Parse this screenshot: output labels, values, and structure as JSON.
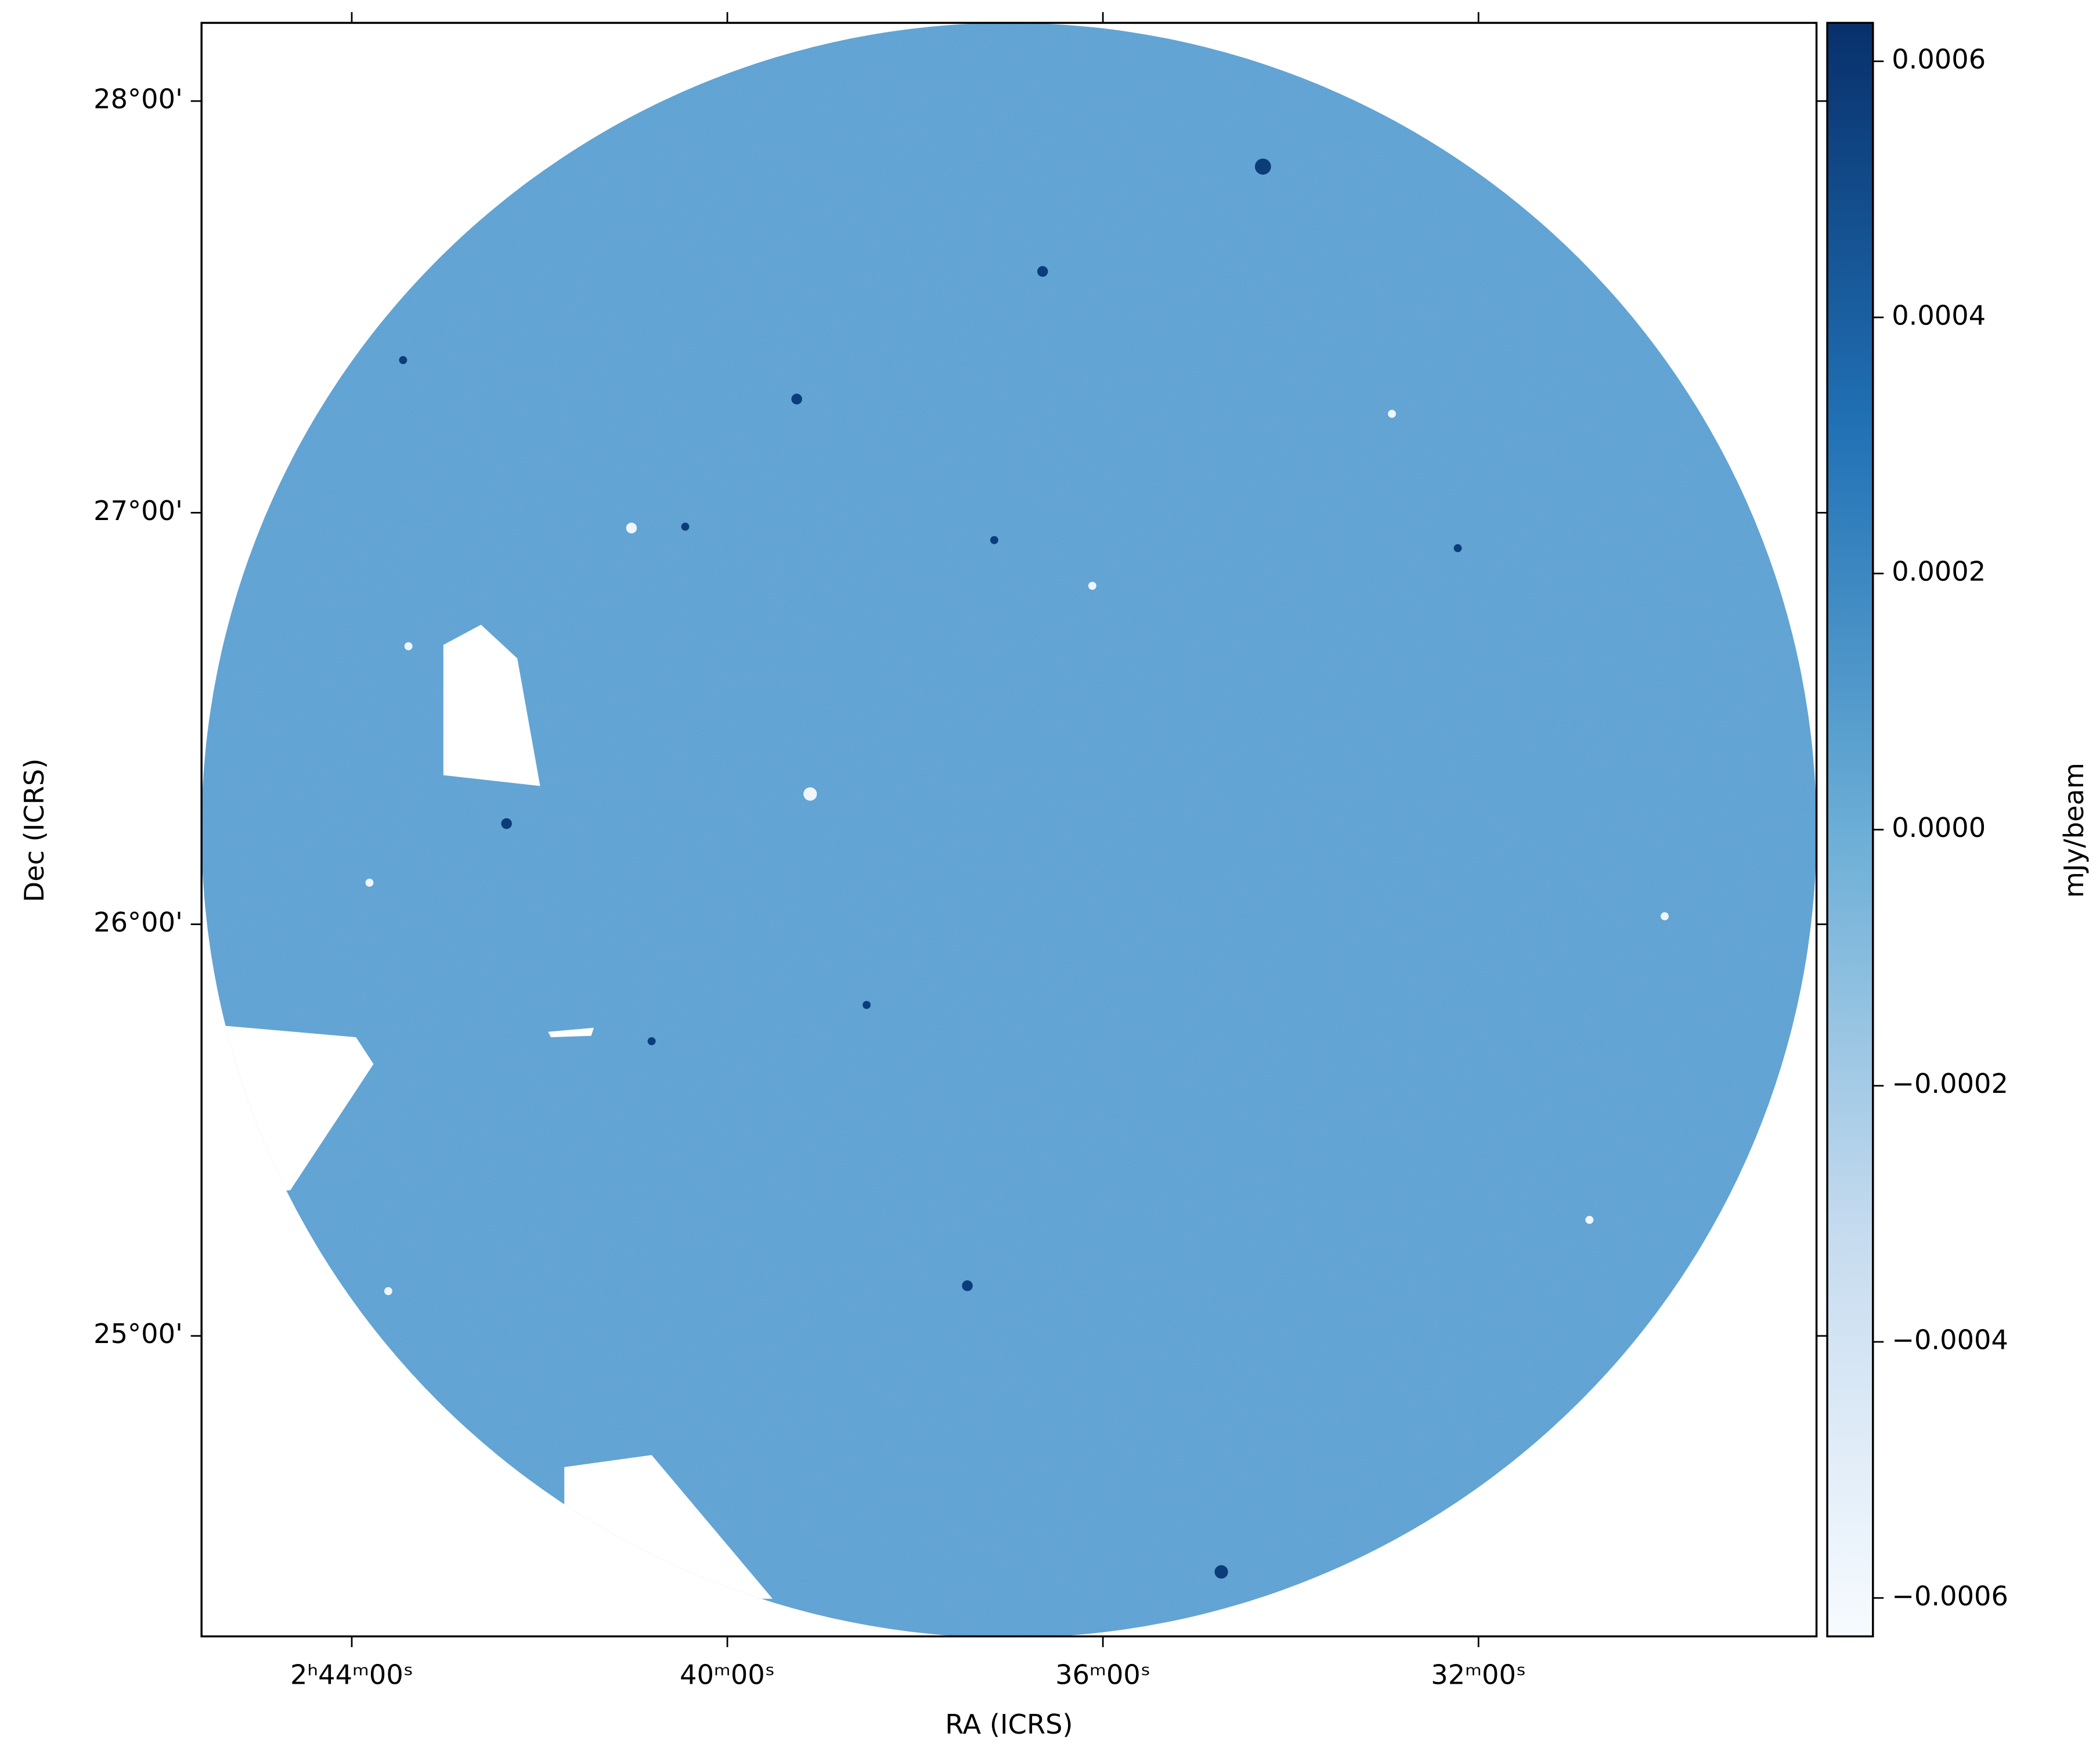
{
  "chart_data": {
    "type": "image",
    "xlabel": "RA (ICRS)",
    "ylabel": "Dec (ICRS)",
    "colorbar_label": "mJy/beam",
    "xlim": [
      41.4,
      37.1
    ],
    "ylim": [
      24.27,
      28.19
    ],
    "xticks": [
      {
        "value": 41,
        "label": "2ʰ44ᵐ00ˢ"
      },
      {
        "value": 40,
        "label": "40ᵐ00ˢ"
      },
      {
        "value": 39,
        "label": "36ᵐ00ˢ"
      },
      {
        "value": 38,
        "label": "32ᵐ00ˢ"
      }
    ],
    "yticks": [
      {
        "value": 25,
        "label": "25°00'"
      },
      {
        "value": 26,
        "label": "26°00'"
      },
      {
        "value": 27,
        "label": "27°00'"
      },
      {
        "value": 28,
        "label": "28°00'"
      }
    ],
    "clim": [
      -0.00063,
      0.00063
    ],
    "cticks": [
      {
        "value": -0.0006,
        "label": "−0.0006"
      },
      {
        "value": -0.0004,
        "label": "−0.0004"
      },
      {
        "value": -0.0002,
        "label": "−0.0002"
      },
      {
        "value": 0,
        "label": "0.0000"
      },
      0.0002,
      0.0004,
      0.0006
    ],
    "colormap": [
      "#f7fbff",
      "#c6dbef",
      "#6baed6",
      "#2171b5",
      "#08306b"
    ]
  }
}
